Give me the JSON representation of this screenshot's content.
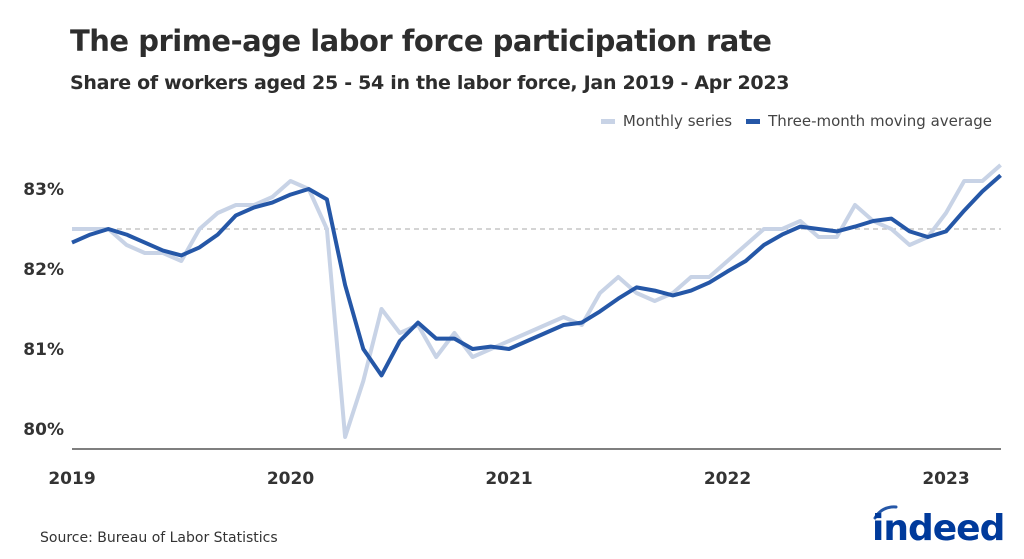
{
  "chart_data": {
    "type": "line",
    "title": "The prime-age labor force participation rate",
    "subtitle": "Share of workers aged 25 - 54 in the labor force, Jan 2019 - Apr 2023",
    "source": "Source: Bureau of Labor Statistics",
    "brand": "indeed",
    "x_start": "2019-01",
    "x_end": "2023-04",
    "x_ticks": [
      "2019",
      "2020",
      "2021",
      "2022",
      "2023"
    ],
    "y_ticks": [
      {
        "value": 80,
        "label": "80%"
      },
      {
        "value": 81,
        "label": "81%"
      },
      {
        "value": 82,
        "label": "82%"
      },
      {
        "value": 83,
        "label": "83%"
      }
    ],
    "ylim": [
      80,
      83.3
    ],
    "reference_line": 82.5,
    "legend_placement": "top-right",
    "grid": false,
    "series": [
      {
        "name": "Monthly series",
        "color": "#c8d3e6",
        "values": [
          82.5,
          82.5,
          82.5,
          82.3,
          82.2,
          82.2,
          82.1,
          82.5,
          82.7,
          82.8,
          82.8,
          82.9,
          83.1,
          83.0,
          82.5,
          79.9,
          80.6,
          81.5,
          81.2,
          81.3,
          80.9,
          81.2,
          80.9,
          81.0,
          81.1,
          81.2,
          81.3,
          81.4,
          81.3,
          81.7,
          81.9,
          81.7,
          81.6,
          81.7,
          81.9,
          81.9,
          82.1,
          82.3,
          82.5,
          82.5,
          82.6,
          82.4,
          82.4,
          82.8,
          82.6,
          82.5,
          82.3,
          82.4,
          82.7,
          83.1,
          83.1,
          83.3
        ]
      },
      {
        "name": "Three-month moving average",
        "color": "#2557a7",
        "values": [
          82.33,
          82.43,
          82.5,
          82.43,
          82.33,
          82.23,
          82.17,
          82.27,
          82.43,
          82.67,
          82.77,
          82.83,
          82.93,
          83.0,
          82.87,
          81.8,
          81.0,
          80.67,
          81.1,
          81.33,
          81.13,
          81.13,
          81.0,
          81.03,
          81.0,
          81.1,
          81.2,
          81.3,
          81.33,
          81.47,
          81.63,
          81.77,
          81.73,
          81.67,
          81.73,
          81.83,
          81.97,
          82.1,
          82.3,
          82.43,
          82.53,
          82.5,
          82.47,
          82.53,
          82.6,
          82.63,
          82.47,
          82.4,
          82.47,
          82.73,
          82.97,
          83.17
        ]
      }
    ]
  }
}
